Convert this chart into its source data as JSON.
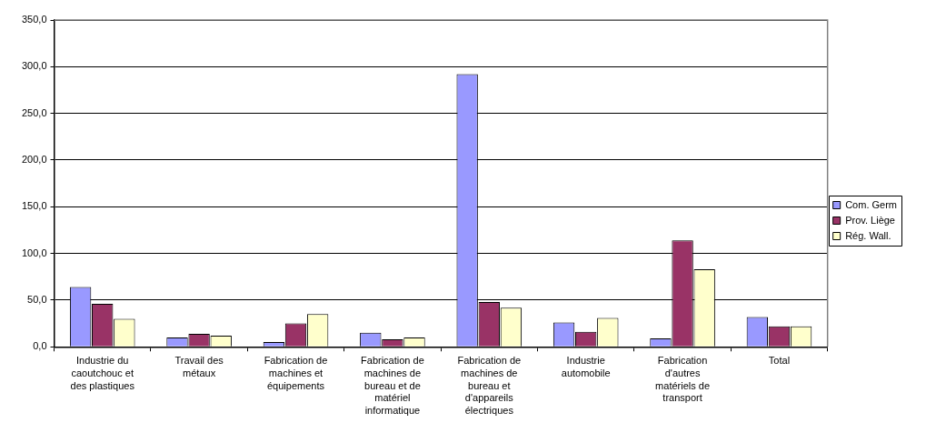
{
  "chart_data": {
    "type": "bar",
    "categories": [
      "Industrie du caoutchouc et des plastiques",
      "Travail des métaux",
      "Fabrication de machines et équipements",
      "Fabrication de machines de bureau et de matériel informatique",
      "Fabrication de machines de bureau et d'appareils électriques",
      "Industrie automobile",
      "Fabrication d'autres matériels de transport",
      "Total"
    ],
    "series": [
      {
        "name": "Com. Germ",
        "color": "#9999ff",
        "values": [
          64,
          10,
          5,
          15,
          292,
          26,
          9,
          32
        ]
      },
      {
        "name": "Prov. Liège",
        "color": "#993366",
        "values": [
          46,
          14,
          25,
          8,
          48,
          16,
          114,
          22
        ]
      },
      {
        "name": "Rég. Wall.",
        "color": "#ffffcc",
        "values": [
          30,
          12,
          35,
          10,
          42,
          31,
          83,
          22
        ]
      }
    ],
    "ylim": [
      0,
      350
    ],
    "yticks": [
      {
        "value": 0,
        "label": "0,0"
      },
      {
        "value": 50,
        "label": "50,0"
      },
      {
        "value": 100,
        "label": "100,0"
      },
      {
        "value": 150,
        "label": "150,0"
      },
      {
        "value": 200,
        "label": "200,0"
      },
      {
        "value": 250,
        "label": "250,0"
      },
      {
        "value": 300,
        "label": "300,0"
      },
      {
        "value": 350,
        "label": "350,0"
      }
    ],
    "grid": "y",
    "legend": "right"
  }
}
